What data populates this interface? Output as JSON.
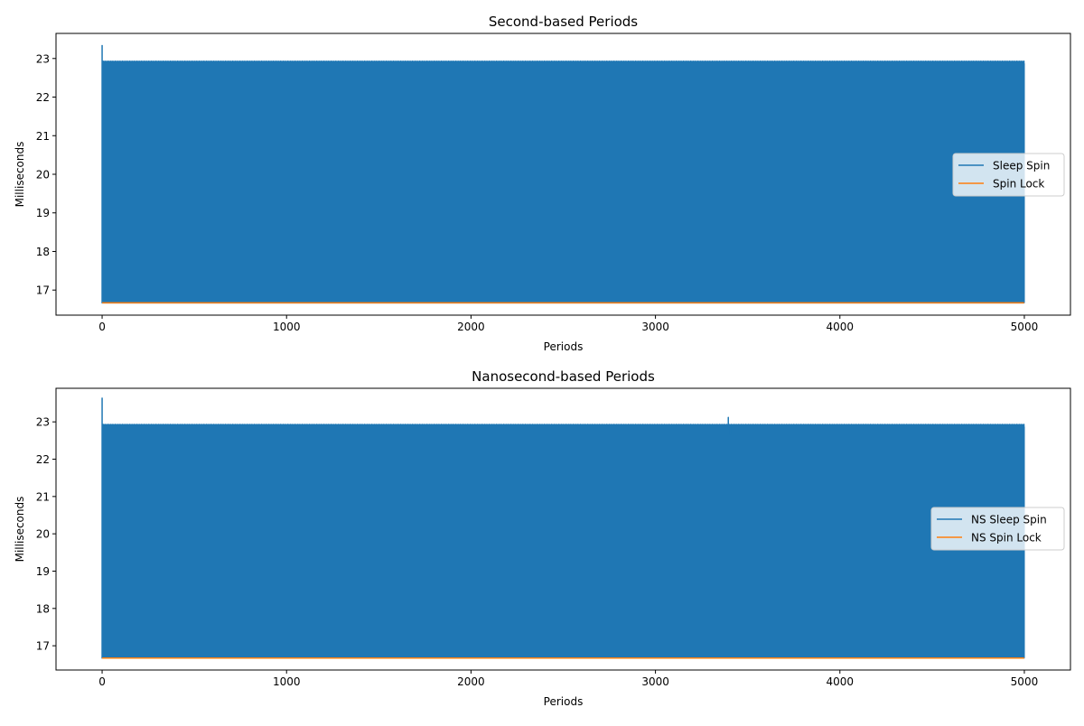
{
  "chart_data": [
    {
      "type": "line",
      "title": "Second-based Periods",
      "xlabel": "Periods",
      "ylabel": "Milliseconds",
      "xlim": [
        -250,
        5250
      ],
      "ylim": [
        16.35,
        23.65
      ],
      "x_ticks": [
        0,
        1000,
        2000,
        3000,
        4000,
        5000
      ],
      "x_tick_labels": [
        "0",
        "1000",
        "2000",
        "3000",
        "4000",
        "5000"
      ],
      "y_ticks": [
        17,
        18,
        19,
        20,
        21,
        22,
        23
      ],
      "y_tick_labels": [
        "17",
        "18",
        "19",
        "20",
        "21",
        "22",
        "23"
      ],
      "grid": false,
      "legend_position": "center-right",
      "series": [
        {
          "name": "Sleep Spin",
          "color": "#1f77b4",
          "n_points": 5000,
          "oscillation_low": 16.67,
          "oscillation_high": 22.88,
          "start_spike": 23.35,
          "spike_x": [],
          "spike_y": [],
          "dip_x": [],
          "dip_y": []
        },
        {
          "name": "Spin Lock",
          "color": "#ff7f0e",
          "n_points": 5000,
          "value": 16.67
        }
      ]
    },
    {
      "type": "line",
      "title": "Nanosecond-based Periods",
      "xlabel": "Periods",
      "ylabel": "Milliseconds",
      "xlim": [
        -250,
        5250
      ],
      "ylim": [
        16.35,
        23.9
      ],
      "x_ticks": [
        0,
        1000,
        2000,
        3000,
        4000,
        5000
      ],
      "x_tick_labels": [
        "0",
        "1000",
        "2000",
        "3000",
        "4000",
        "5000"
      ],
      "y_ticks": [
        17,
        18,
        19,
        20,
        21,
        22,
        23
      ],
      "y_tick_labels": [
        "17",
        "18",
        "19",
        "20",
        "21",
        "22",
        "23"
      ],
      "grid": false,
      "legend_position": "center-right",
      "series": [
        {
          "name": "NS Sleep Spin",
          "color": "#1f77b4",
          "n_points": 5000,
          "oscillation_low": 16.67,
          "oscillation_high": 22.88,
          "start_spike": 23.65,
          "spike_x": [
            3395
          ],
          "spike_y": [
            23.12
          ],
          "dip_x": [
            3405
          ],
          "dip_y": [
            22.65
          ]
        },
        {
          "name": "NS Spin Lock",
          "color": "#ff7f0e",
          "n_points": 5000,
          "value": 16.67
        }
      ]
    }
  ]
}
